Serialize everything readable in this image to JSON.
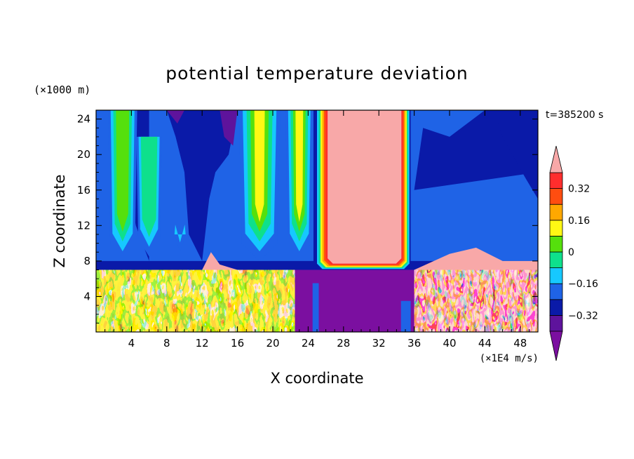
{
  "chart_data": {
    "type": "heatmap",
    "title": "potential temperature deviation",
    "xlabel": "X coordinate",
    "ylabel": "Z coordinate",
    "x_unit": "(×1E4 m/s)",
    "y_unit": "(×1000 m)",
    "time_label": "t=385200 s",
    "xlim": [
      0,
      50
    ],
    "ylim": [
      0,
      25
    ],
    "x_ticks": [
      4,
      8,
      12,
      16,
      20,
      24,
      28,
      32,
      36,
      40,
      44,
      48
    ],
    "y_ticks": [
      4,
      8,
      12,
      16,
      20,
      24
    ],
    "colorbar": {
      "levels": [
        -0.4,
        -0.32,
        -0.24,
        -0.16,
        -0.08,
        0,
        0.08,
        0.16,
        0.24,
        0.32,
        0.4
      ],
      "tick_labels": [
        "0.32",
        "0.16",
        "0",
        "-0.16",
        "-0.32"
      ],
      "tick_values": [
        0.32,
        0.16,
        0,
        -0.16,
        -0.32
      ],
      "colors": [
        "#7b0fa0",
        "#5e139c",
        "#0a1aa8",
        "#1f63e6",
        "#16c8ff",
        "#0ee08c",
        "#55e00c",
        "#fff814",
        "#ffa800",
        "#ff4d10",
        "#ff2d2d",
        "#f8a8a8"
      ],
      "extend": "both"
    },
    "regions": {
      "upper_columns": [
        {
          "x": [
            2,
            4
          ],
          "peak": 0.08
        },
        {
          "x": [
            5,
            7
          ],
          "peak": -0.08
        },
        {
          "x": [
            16.5,
            20.5
          ],
          "peak": 0.16
        },
        {
          "x": [
            22,
            24
          ],
          "peak": 0.16
        },
        {
          "x": [
            25.5,
            35
          ],
          "peak": 0.4
        }
      ],
      "stable_layer_top_z": 7,
      "lower_turbulent_x": [
        [
          0,
          22
        ],
        [
          36,
          50
        ]
      ],
      "lower_cold_pool_x": [
        22,
        36
      ]
    }
  }
}
